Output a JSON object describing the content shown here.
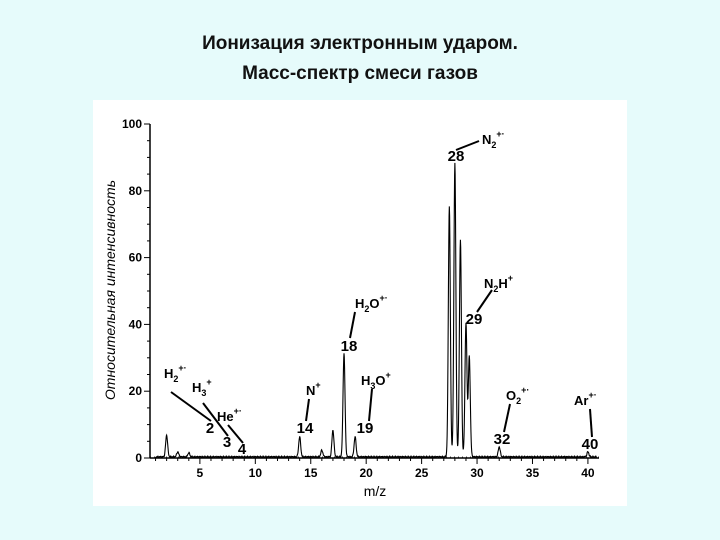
{
  "header": {
    "title_line1": "Ионизация электронным ударом.",
    "title_line2": "Масс-спектр смеси газов"
  },
  "chart_data": {
    "type": "line",
    "title": "",
    "xlabel": "m/z",
    "ylabel": "Относительная интенсивность",
    "xlim": [
      0.5,
      41
    ],
    "ylim": [
      0,
      100
    ],
    "xticks": [
      5,
      10,
      15,
      20,
      25,
      30,
      35,
      40
    ],
    "yticks": [
      0,
      20,
      40,
      60,
      80,
      100
    ],
    "peaks": [
      {
        "mz": 2,
        "intensity": 6.5
      },
      {
        "mz": 3,
        "intensity": 1.5
      },
      {
        "mz": 4,
        "intensity": 1.2
      },
      {
        "mz": 14,
        "intensity": 6
      },
      {
        "mz": 16,
        "intensity": 2
      },
      {
        "mz": 17,
        "intensity": 8
      },
      {
        "mz": 18,
        "intensity": 31
      },
      {
        "mz": 19,
        "intensity": 6
      },
      {
        "mz": 27.5,
        "intensity": 75
      },
      {
        "mz": 28,
        "intensity": 88
      },
      {
        "mz": 28.5,
        "intensity": 65
      },
      {
        "mz": 29,
        "intensity": 40
      },
      {
        "mz": 29.3,
        "intensity": 30
      },
      {
        "mz": 32,
        "intensity": 3
      },
      {
        "mz": 40,
        "intensity": 1.5
      }
    ],
    "annotations": [
      {
        "mz_label": "2",
        "ion": "H",
        "sub": "2",
        "sup": "+·"
      },
      {
        "mz_label": "3",
        "ion": "H",
        "sub": "3",
        "sup": "+"
      },
      {
        "mz_label": "4",
        "ion": "He",
        "sub": "",
        "sup": "+·"
      },
      {
        "mz_label": "14",
        "ion": "N",
        "sub": "",
        "sup": "+"
      },
      {
        "mz_label": "18",
        "ion": "H",
        "sub": "2",
        "tail": "O",
        "sup": "+·"
      },
      {
        "mz_label": "19",
        "ion": "H",
        "sub": "3",
        "tail": "O",
        "sup": "+"
      },
      {
        "mz_label": "28",
        "ion": "N",
        "sub": "2",
        "sup": "+·"
      },
      {
        "mz_label": "29",
        "ion": "N",
        "sub": "2",
        "tail": "H",
        "sup": "+"
      },
      {
        "mz_label": "32",
        "ion": "O",
        "sub": "2",
        "sup": "+·"
      },
      {
        "mz_label": "40",
        "ion": "Ar",
        "sub": "",
        "sup": "+·"
      }
    ]
  }
}
